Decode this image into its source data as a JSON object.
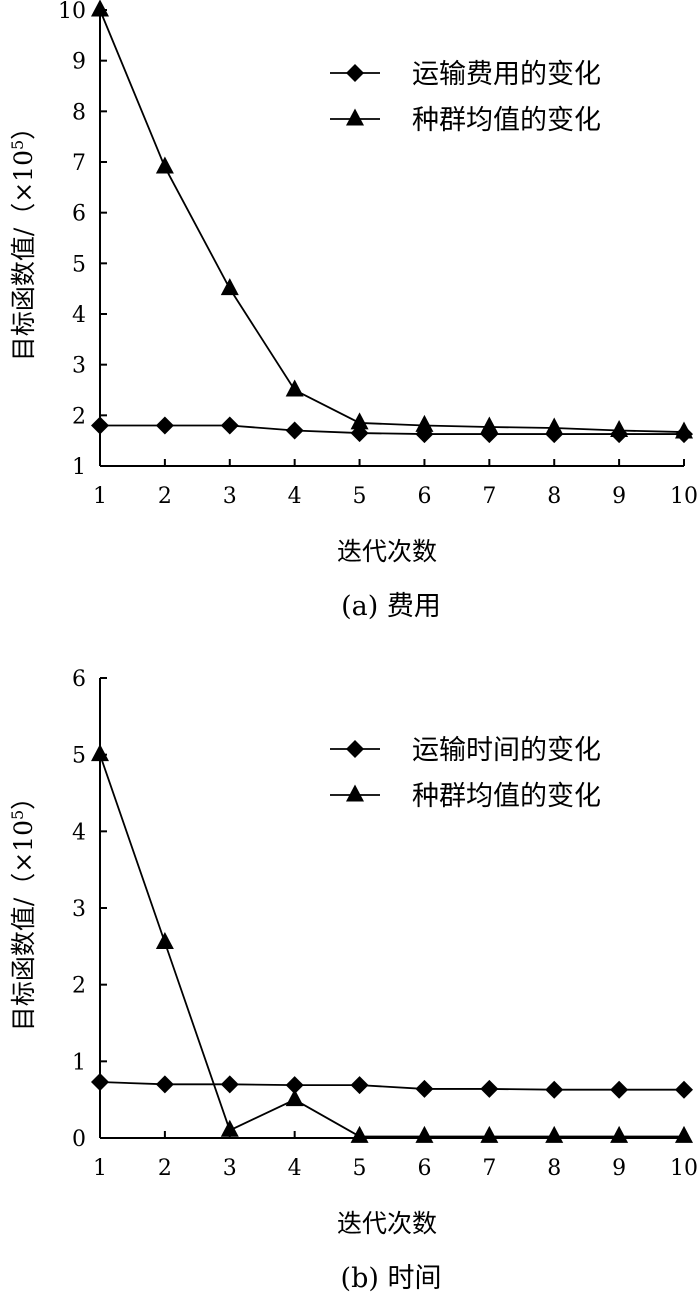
{
  "chart_data": [
    {
      "type": "line",
      "caption": "(a) 费用",
      "xlabel": "迭代次数",
      "ylabel": "目标函数值/（×10",
      "ylabel_sup": "5",
      "ylabel_close": "）",
      "x": [
        1,
        2,
        3,
        4,
        5,
        6,
        7,
        8,
        9,
        10
      ],
      "xticks": [
        "1",
        "2",
        "3",
        "4",
        "5",
        "6",
        "7",
        "8",
        "9",
        "10"
      ],
      "yticks": [
        "1",
        "2",
        "3",
        "4",
        "5",
        "6",
        "7",
        "8",
        "9",
        "10"
      ],
      "xlim": [
        1,
        10
      ],
      "ylim": [
        1,
        10
      ],
      "grid": false,
      "legend_position": "top-right",
      "series": [
        {
          "name": "运输费用的变化",
          "marker": "diamond",
          "values": [
            1.8,
            1.8,
            1.8,
            1.7,
            1.65,
            1.63,
            1.63,
            1.63,
            1.63,
            1.63
          ]
        },
        {
          "name": "种群均值的变化",
          "marker": "triangle",
          "values": [
            10,
            6.9,
            4.5,
            2.5,
            1.85,
            1.8,
            1.77,
            1.75,
            1.7,
            1.67
          ]
        }
      ]
    },
    {
      "type": "line",
      "caption": "(b) 时间",
      "xlabel": "迭代次数",
      "ylabel": "目标函数值/（×10",
      "ylabel_sup": "5",
      "ylabel_close": "）",
      "x": [
        1,
        2,
        3,
        4,
        5,
        6,
        7,
        8,
        9,
        10
      ],
      "xticks": [
        "1",
        "2",
        "3",
        "4",
        "5",
        "6",
        "7",
        "8",
        "9",
        "10"
      ],
      "yticks": [
        "0",
        "1",
        "2",
        "3",
        "4",
        "5",
        "6"
      ],
      "xlim": [
        1,
        10
      ],
      "ylim": [
        0,
        6
      ],
      "grid": false,
      "legend_position": "top-right",
      "series": [
        {
          "name": "运输时间的变化",
          "marker": "diamond",
          "values": [
            0.73,
            0.7,
            0.7,
            0.69,
            0.69,
            0.64,
            0.64,
            0.63,
            0.63,
            0.63
          ]
        },
        {
          "name": "种群均值的变化",
          "marker": "triangle",
          "values": [
            5.0,
            2.55,
            0.1,
            0.5,
            0.02,
            0.02,
            0.02,
            0.02,
            0.02,
            0.02
          ]
        }
      ]
    }
  ]
}
